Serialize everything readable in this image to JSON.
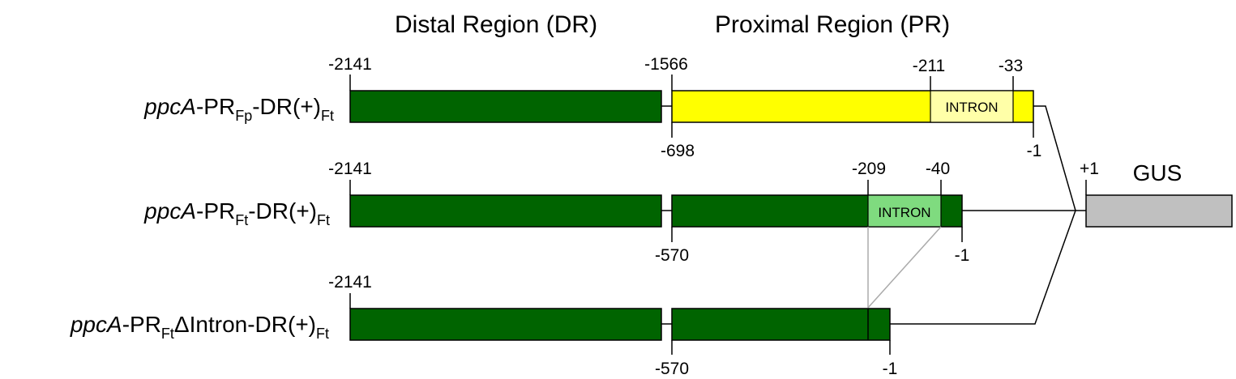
{
  "headers": {
    "distal": "Distal Region (DR)",
    "proximal": "Proximal Region (PR)"
  },
  "reporter": {
    "label": "GUS",
    "start_label": "+1"
  },
  "constructs": [
    {
      "label_parts": {
        "gene": "ppcA",
        "pr": "-PR",
        "pr_sub": "Fp",
        "rest": "-DR(+)",
        "rest_sub": "Ft"
      },
      "dr": {
        "start": "-2141",
        "end": "-1566"
      },
      "pr": {
        "start": "-698",
        "end": "-1",
        "intron_start": "-211",
        "intron_end": "-33"
      },
      "intron_label": "INTRON"
    },
    {
      "label_parts": {
        "gene": "ppcA",
        "pr": "-PR",
        "pr_sub": "Ft",
        "rest": "-DR(+)",
        "rest_sub": "Ft"
      },
      "dr": {
        "start": "-2141"
      },
      "pr": {
        "start": "-570",
        "end": "-1",
        "intron_start": "-209",
        "intron_end": "-40"
      },
      "intron_label": "INTRON"
    },
    {
      "label_parts": {
        "gene": "ppcA",
        "pr": "-PR",
        "pr_sub": "Ft",
        "rest": "ΔIntron-DR(+)",
        "rest_sub": "Ft"
      },
      "dr": {
        "start": "-2141"
      },
      "pr": {
        "start": "-570",
        "end": "-1"
      }
    }
  ],
  "colors": {
    "dr_fill": "#006400",
    "pr_fp_fill": "#ffff00",
    "intron_fp_fill": "#ffffa8",
    "intron_ft_fill": "#7fdb7f",
    "gus_fill": "#c0c0c0",
    "stroke": "#000000",
    "deletion_lines": "#aaaaaa"
  }
}
